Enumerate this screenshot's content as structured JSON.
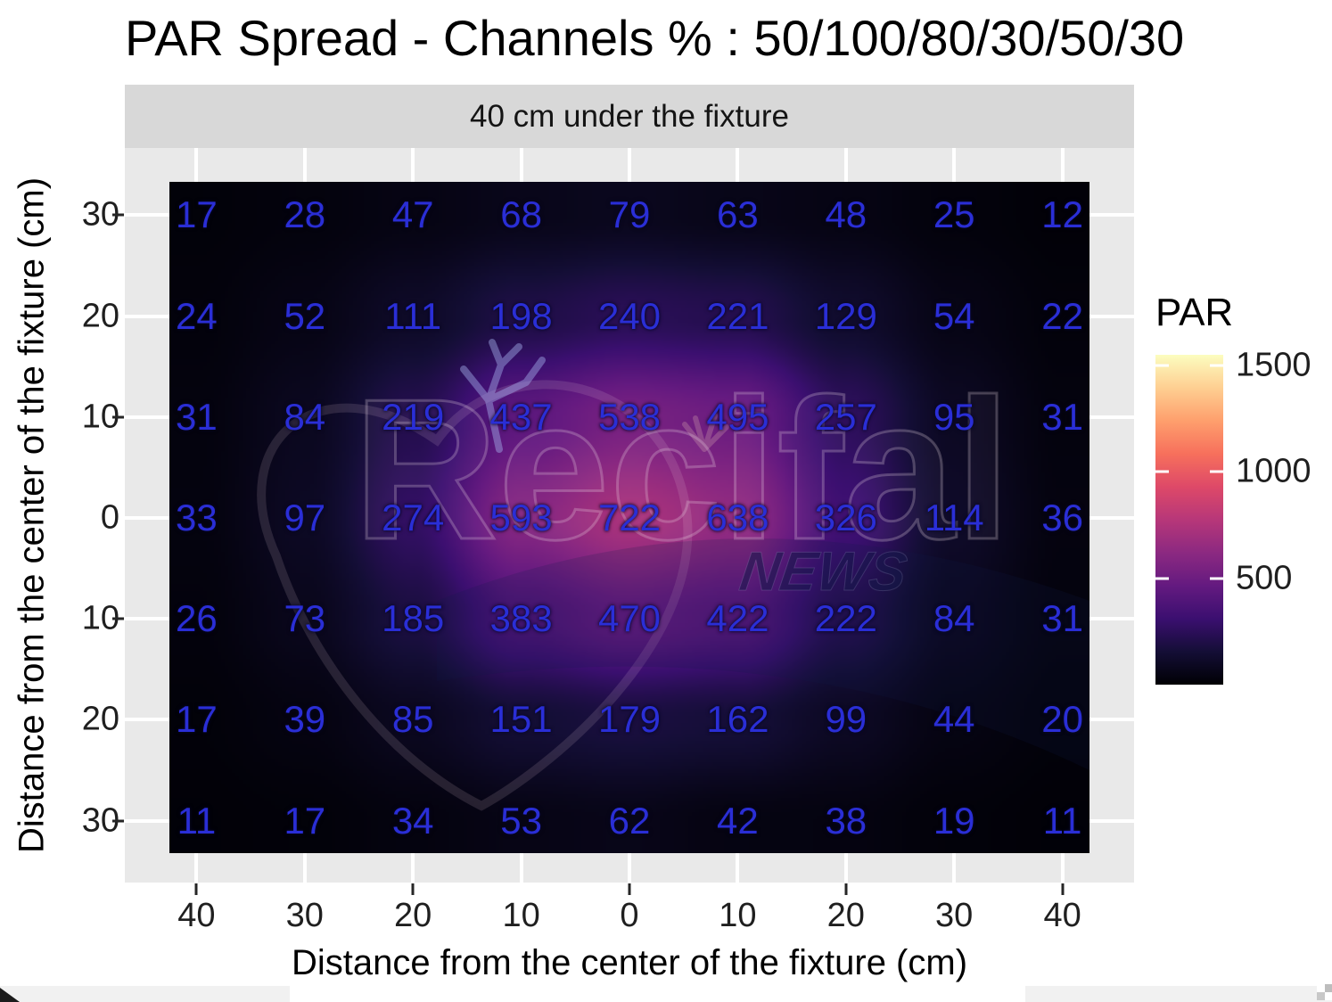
{
  "chart_data": {
    "type": "heatmap",
    "title": "PAR Spread - Channels % : 50/100/80/30/50/30",
    "facet_label": "40 cm under the fixture",
    "xlabel": "Distance from the center of the fixture (cm)",
    "ylabel": "Distance from the center of the fixture (cm)",
    "x_tick_labels": [
      "40",
      "30",
      "20",
      "10",
      "0",
      "10",
      "20",
      "30",
      "40"
    ],
    "y_tick_labels": [
      "30",
      "20",
      "10",
      "0",
      "10",
      "20",
      "30"
    ],
    "x_cm": [
      -40,
      -30,
      -20,
      -10,
      0,
      10,
      20,
      30,
      40
    ],
    "y_cm": [
      30,
      20,
      10,
      0,
      -10,
      -20,
      -30
    ],
    "values": [
      [
        17,
        28,
        47,
        68,
        79,
        63,
        48,
        25,
        12
      ],
      [
        24,
        52,
        111,
        198,
        240,
        221,
        129,
        54,
        22
      ],
      [
        31,
        84,
        219,
        437,
        538,
        495,
        257,
        95,
        31
      ],
      [
        33,
        97,
        274,
        593,
        722,
        638,
        326,
        114,
        36
      ],
      [
        26,
        73,
        185,
        383,
        470,
        422,
        222,
        84,
        31
      ],
      [
        17,
        39,
        85,
        151,
        179,
        162,
        99,
        44,
        20
      ],
      [
        11,
        17,
        34,
        53,
        62,
        42,
        38,
        19,
        11
      ]
    ],
    "value_label_color": "#2a2ed6",
    "grid_on": true,
    "legend_position": "right",
    "colorbar": {
      "title": "PAR",
      "tick_labels": [
        "1500",
        "1000",
        "500"
      ],
      "tick_values": [
        1500,
        1000,
        500
      ],
      "domain": [
        0,
        1550
      ],
      "palette": "magma",
      "stops": [
        "#000004",
        "#140e36",
        "#3b0f70",
        "#641a80",
        "#8c2981",
        "#b73779",
        "#de4968",
        "#f7705c",
        "#fe9f6d",
        "#fecf92",
        "#fcfdbf"
      ]
    },
    "watermark": {
      "brand": "Recifal",
      "suffix": "NEWS"
    }
  }
}
